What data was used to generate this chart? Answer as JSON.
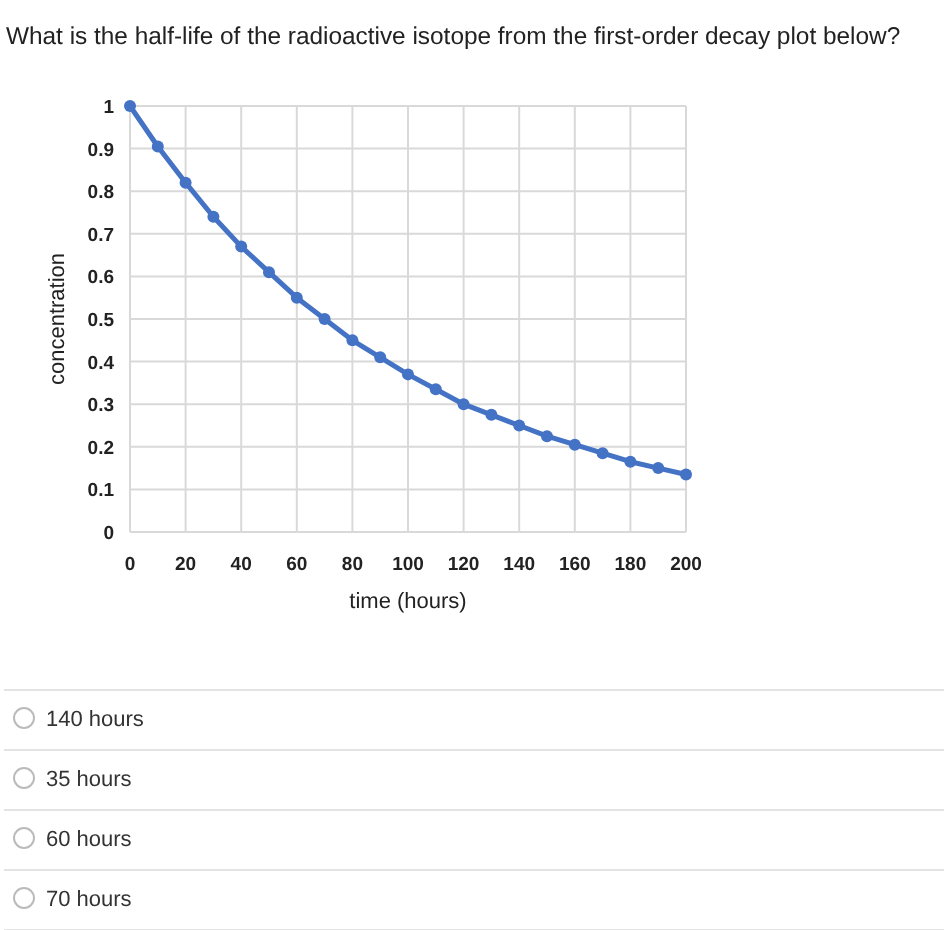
{
  "chart_data": {
    "type": "line",
    "title": "What is the half-life of the radioactive isotope from the first-order decay plot below?",
    "xlabel": "time (hours)",
    "ylabel": "concentration",
    "x": [
      0,
      10,
      20,
      30,
      40,
      50,
      60,
      70,
      80,
      90,
      100,
      110,
      120,
      130,
      140,
      150,
      160,
      170,
      180,
      190,
      200
    ],
    "series": [
      {
        "color": "#4472c4",
        "values": [
          1,
          0.905,
          0.82,
          0.74,
          0.67,
          0.61,
          0.55,
          0.5,
          0.45,
          0.41,
          0.37,
          0.335,
          0.3,
          0.275,
          0.25,
          0.225,
          0.205,
          0.185,
          0.165,
          0.15,
          0.135
        ]
      }
    ],
    "xlim": [
      0,
      200
    ],
    "xticks": [
      0,
      20,
      40,
      60,
      80,
      100,
      120,
      140,
      160,
      180,
      200
    ],
    "ylim": [
      0,
      1
    ],
    "yticks": [
      0,
      0.1,
      0.2,
      0.3,
      0.4,
      0.5,
      0.6,
      0.7,
      0.8,
      0.9,
      1
    ],
    "grid": true,
    "marker": "circle",
    "line_style": "solid",
    "annotations": [
      "140 hours",
      "35 hours",
      "60 hours",
      "70 hours"
    ]
  }
}
